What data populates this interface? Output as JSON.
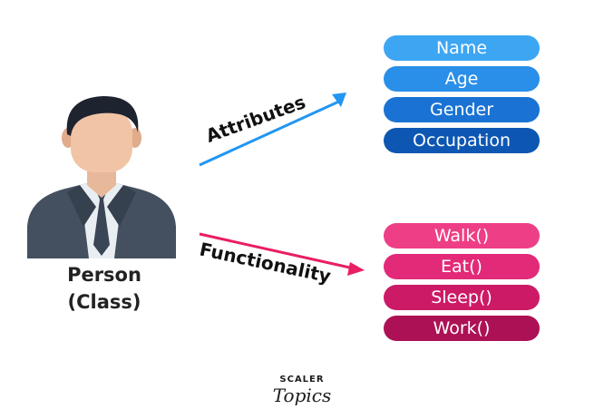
{
  "person": {
    "label_line1": "Person",
    "label_line2": "(Class)"
  },
  "arrows": {
    "attributes_label": "Attributes",
    "functionality_label": "Functionality",
    "attributes_color": "#2196f3",
    "functionality_color": "#e91e63"
  },
  "attributes": [
    {
      "label": "Name",
      "color": "#3da6f3"
    },
    {
      "label": "Age",
      "color": "#2a8fe8"
    },
    {
      "label": "Gender",
      "color": "#1a73d4"
    },
    {
      "label": "Occupation",
      "color": "#0d57b3"
    }
  ],
  "methods": [
    {
      "label": "Walk()",
      "color": "#ee3f86"
    },
    {
      "label": "Eat()",
      "color": "#e22a78"
    },
    {
      "label": "Sleep()",
      "color": "#cc1a66"
    },
    {
      "label": "Work()",
      "color": "#ad1155"
    }
  ],
  "logo": {
    "line1": "SCALER",
    "line2": "Topics"
  }
}
